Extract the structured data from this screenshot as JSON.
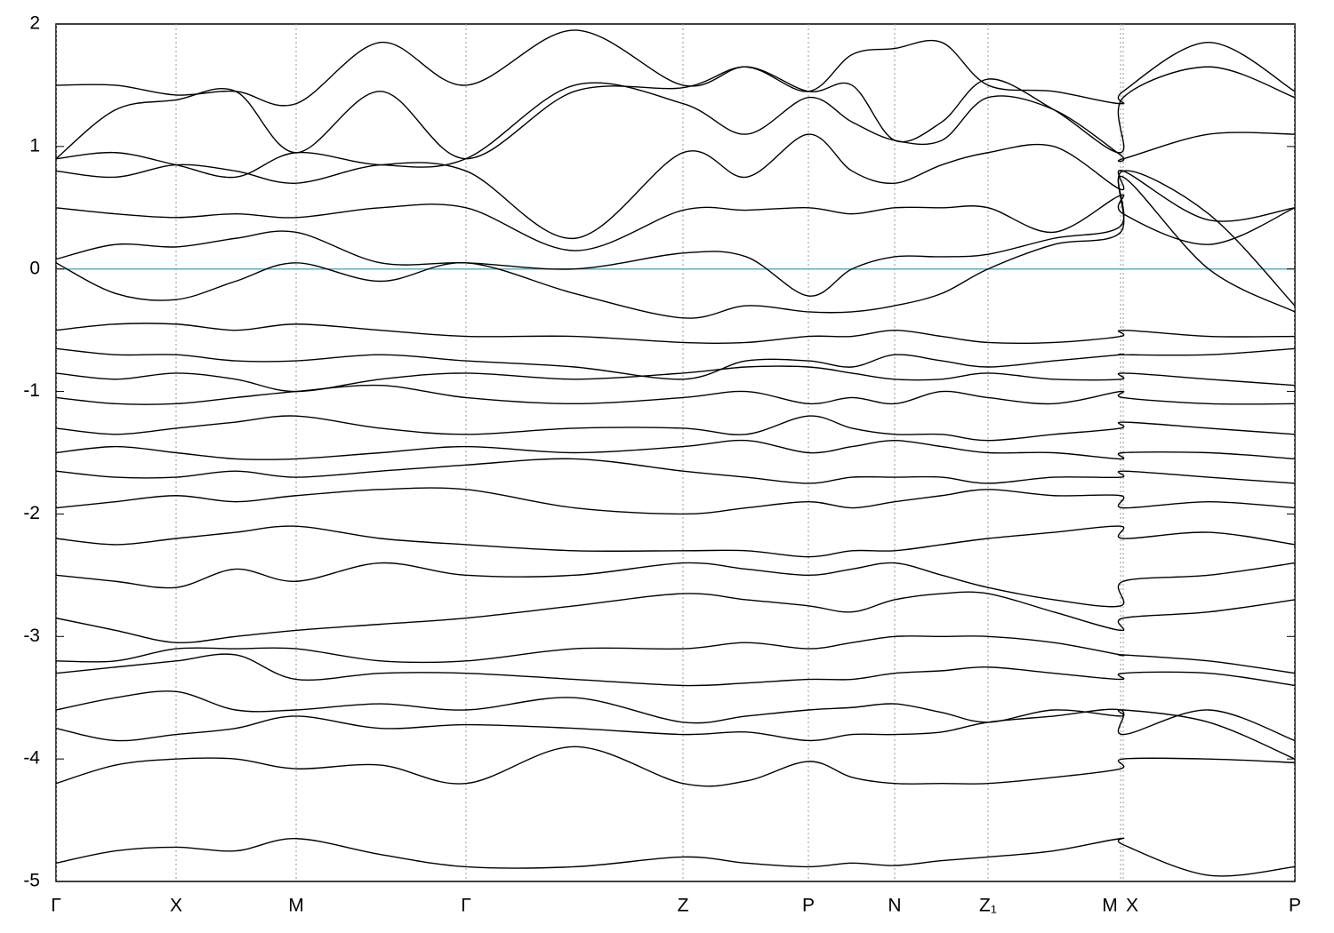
{
  "chart_data": {
    "type": "line",
    "x": [
      0,
      67,
      135,
      202,
      270,
      365,
      461,
      583,
      705,
      776,
      846,
      895,
      943,
      996,
      1048,
      1122,
      1197,
      1200,
      1296,
      1393
    ],
    "xlim": [
      0,
      1393
    ],
    "xticks": [
      {
        "value": 0,
        "label": "Γ"
      },
      {
        "value": 135,
        "label": "X"
      },
      {
        "value": 270,
        "label": "M"
      },
      {
        "value": 461,
        "label": "Γ"
      },
      {
        "value": 705,
        "label": "Z"
      },
      {
        "value": 846,
        "label": "P"
      },
      {
        "value": 943,
        "label": "N"
      },
      {
        "value": 1048,
        "label": "Z₁"
      },
      {
        "value": 1197,
        "label": "M"
      },
      {
        "value": 1200,
        "label": "X"
      },
      {
        "value": 1393,
        "label": "P"
      }
    ],
    "ylim": [
      -5,
      2
    ],
    "yticks": [
      -5,
      -4,
      -3,
      -2,
      -1,
      0,
      1,
      2
    ],
    "grid": true,
    "fermi_level": 0,
    "fermi_color": "#5aafc8",
    "color": "#000000",
    "series": [
      {
        "values": [
          -4.2,
          -4.05,
          -4.0,
          -4.0,
          -4.08,
          -4.05,
          -4.2,
          -3.9,
          -4.2,
          -4.18,
          -4.02,
          -4.15,
          -4.2,
          -4.2,
          -4.2,
          -4.15,
          -4.08,
          -4.0,
          -4.0,
          -4.03
        ]
      },
      {
        "values": [
          -4.85,
          -4.75,
          -4.72,
          -4.75,
          -4.65,
          -4.78,
          -4.88,
          -4.88,
          -4.8,
          -4.85,
          -4.88,
          -4.85,
          -4.87,
          -4.83,
          -4.8,
          -4.75,
          -4.65,
          -4.7,
          -4.95,
          -4.88
        ]
      },
      {
        "values": [
          -3.75,
          -3.85,
          -3.8,
          -3.75,
          -3.65,
          -3.75,
          -3.72,
          -3.75,
          -3.8,
          -3.78,
          -3.85,
          -3.8,
          -3.8,
          -3.78,
          -3.7,
          -3.65,
          -3.6,
          -3.8,
          -3.6,
          -3.85
        ]
      },
      {
        "values": [
          -3.6,
          -3.5,
          -3.45,
          -3.6,
          -3.6,
          -3.55,
          -3.6,
          -3.5,
          -3.7,
          -3.65,
          -3.6,
          -3.58,
          -3.55,
          -3.62,
          -3.7,
          -3.6,
          -3.65,
          -3.6,
          -3.7,
          -4.0
        ]
      },
      {
        "values": [
          -3.3,
          -3.25,
          -3.2,
          -3.15,
          -3.35,
          -3.3,
          -3.3,
          -3.35,
          -3.4,
          -3.38,
          -3.35,
          -3.35,
          -3.3,
          -3.28,
          -3.25,
          -3.3,
          -3.35,
          -3.3,
          -3.3,
          -3.4
        ]
      },
      {
        "values": [
          -3.2,
          -3.2,
          -3.1,
          -3.1,
          -3.1,
          -3.2,
          -3.2,
          -3.1,
          -3.1,
          -3.05,
          -3.1,
          -3.05,
          -3.0,
          -3.0,
          -3.0,
          -3.05,
          -3.15,
          -3.15,
          -3.2,
          -3.3
        ]
      },
      {
        "values": [
          -2.85,
          -2.95,
          -3.05,
          -3.0,
          -2.95,
          -2.9,
          -2.85,
          -2.75,
          -2.65,
          -2.7,
          -2.75,
          -2.8,
          -2.7,
          -2.65,
          -2.65,
          -2.8,
          -2.95,
          -2.85,
          -2.8,
          -2.7
        ]
      },
      {
        "values": [
          -2.5,
          -2.55,
          -2.6,
          -2.45,
          -2.55,
          -2.4,
          -2.5,
          -2.5,
          -2.4,
          -2.45,
          -2.5,
          -2.45,
          -2.4,
          -2.5,
          -2.6,
          -2.7,
          -2.75,
          -2.55,
          -2.5,
          -2.4
        ]
      },
      {
        "values": [
          -2.2,
          -2.25,
          -2.2,
          -2.15,
          -2.1,
          -2.2,
          -2.25,
          -2.3,
          -2.3,
          -2.3,
          -2.35,
          -2.3,
          -2.3,
          -2.25,
          -2.2,
          -2.15,
          -2.1,
          -2.2,
          -2.15,
          -2.25
        ]
      },
      {
        "values": [
          -1.95,
          -1.9,
          -1.85,
          -1.9,
          -1.85,
          -1.8,
          -1.8,
          -1.95,
          -2.0,
          -1.95,
          -1.9,
          -1.95,
          -1.9,
          -1.85,
          -1.8,
          -1.85,
          -1.85,
          -1.95,
          -1.9,
          -1.95
        ]
      },
      {
        "values": [
          -1.65,
          -1.7,
          -1.7,
          -1.65,
          -1.7,
          -1.65,
          -1.6,
          -1.55,
          -1.65,
          -1.7,
          -1.75,
          -1.7,
          -1.7,
          -1.7,
          -1.75,
          -1.7,
          -1.7,
          -1.65,
          -1.7,
          -1.75
        ]
      },
      {
        "values": [
          -1.5,
          -1.45,
          -1.5,
          -1.55,
          -1.55,
          -1.5,
          -1.45,
          -1.5,
          -1.45,
          -1.4,
          -1.5,
          -1.45,
          -1.4,
          -1.45,
          -1.5,
          -1.5,
          -1.55,
          -1.5,
          -1.5,
          -1.55
        ]
      },
      {
        "values": [
          -1.3,
          -1.35,
          -1.3,
          -1.25,
          -1.2,
          -1.3,
          -1.35,
          -1.3,
          -1.3,
          -1.35,
          -1.2,
          -1.3,
          -1.35,
          -1.35,
          -1.4,
          -1.35,
          -1.3,
          -1.25,
          -1.3,
          -1.35
        ]
      },
      {
        "values": [
          -1.05,
          -1.1,
          -1.1,
          -1.05,
          -1.0,
          -0.95,
          -1.05,
          -1.1,
          -1.05,
          -1.0,
          -1.1,
          -1.05,
          -1.1,
          -1.0,
          -1.05,
          -1.1,
          -1.0,
          -1.05,
          -1.1,
          -1.1
        ]
      },
      {
        "values": [
          -0.85,
          -0.9,
          -0.85,
          -0.9,
          -1.0,
          -0.9,
          -0.85,
          -0.9,
          -0.85,
          -0.8,
          -0.8,
          -0.85,
          -0.9,
          -0.9,
          -0.85,
          -0.9,
          -0.9,
          -0.85,
          -0.9,
          -0.95
        ]
      },
      {
        "values": [
          -0.65,
          -0.7,
          -0.7,
          -0.75,
          -0.75,
          -0.7,
          -0.75,
          -0.8,
          -0.9,
          -0.75,
          -0.75,
          -0.8,
          -0.7,
          -0.75,
          -0.8,
          -0.75,
          -0.7,
          -0.7,
          -0.7,
          -0.65
        ]
      },
      {
        "values": [
          -0.5,
          -0.45,
          -0.45,
          -0.5,
          -0.45,
          -0.5,
          -0.55,
          -0.55,
          -0.6,
          -0.6,
          -0.55,
          -0.55,
          -0.5,
          -0.55,
          -0.6,
          -0.6,
          -0.55,
          -0.5,
          -0.55,
          -0.55
        ]
      },
      {
        "values": [
          0.05,
          -0.2,
          -0.25,
          -0.1,
          0.05,
          -0.1,
          0.05,
          -0.2,
          -0.4,
          -0.3,
          -0.35,
          -0.35,
          -0.3,
          -0.2,
          0.0,
          0.2,
          0.3,
          0.8,
          0.45,
          -0.3
        ]
      },
      {
        "values": [
          0.08,
          0.2,
          0.18,
          0.25,
          0.3,
          0.05,
          0.05,
          0.0,
          0.13,
          0.1,
          -0.22,
          0.0,
          0.1,
          0.1,
          0.12,
          0.25,
          0.35,
          0.75,
          0.0,
          -0.35
        ]
      },
      {
        "values": [
          0.5,
          0.45,
          0.42,
          0.45,
          0.42,
          0.5,
          0.5,
          0.15,
          0.48,
          0.48,
          0.5,
          0.45,
          0.5,
          0.5,
          0.5,
          0.3,
          0.6,
          0.45,
          0.2,
          0.5
        ]
      },
      {
        "values": [
          0.8,
          0.75,
          0.85,
          0.8,
          0.7,
          0.85,
          0.8,
          0.25,
          0.95,
          0.75,
          1.1,
          0.8,
          0.7,
          0.85,
          0.95,
          1.0,
          0.65,
          0.8,
          0.4,
          0.5
        ]
      },
      {
        "values": [
          0.9,
          0.95,
          0.85,
          0.75,
          0.95,
          0.85,
          0.9,
          1.5,
          1.35,
          1.1,
          1.4,
          1.2,
          1.05,
          1.05,
          1.4,
          1.3,
          0.93,
          0.9,
          1.1,
          1.1
        ]
      },
      {
        "values": [
          1.5,
          1.5,
          1.42,
          1.45,
          1.35,
          1.85,
          1.5,
          1.95,
          1.5,
          1.65,
          1.45,
          1.75,
          1.8,
          1.85,
          1.5,
          1.45,
          1.35,
          1.45,
          1.85,
          1.45
        ]
      },
      {
        "values": [
          0.9,
          1.3,
          1.38,
          1.45,
          0.95,
          1.45,
          0.9,
          1.45,
          1.48,
          1.65,
          1.45,
          1.5,
          1.05,
          1.2,
          1.55,
          1.3,
          0.95,
          1.4,
          1.65,
          1.4
        ]
      }
    ]
  }
}
